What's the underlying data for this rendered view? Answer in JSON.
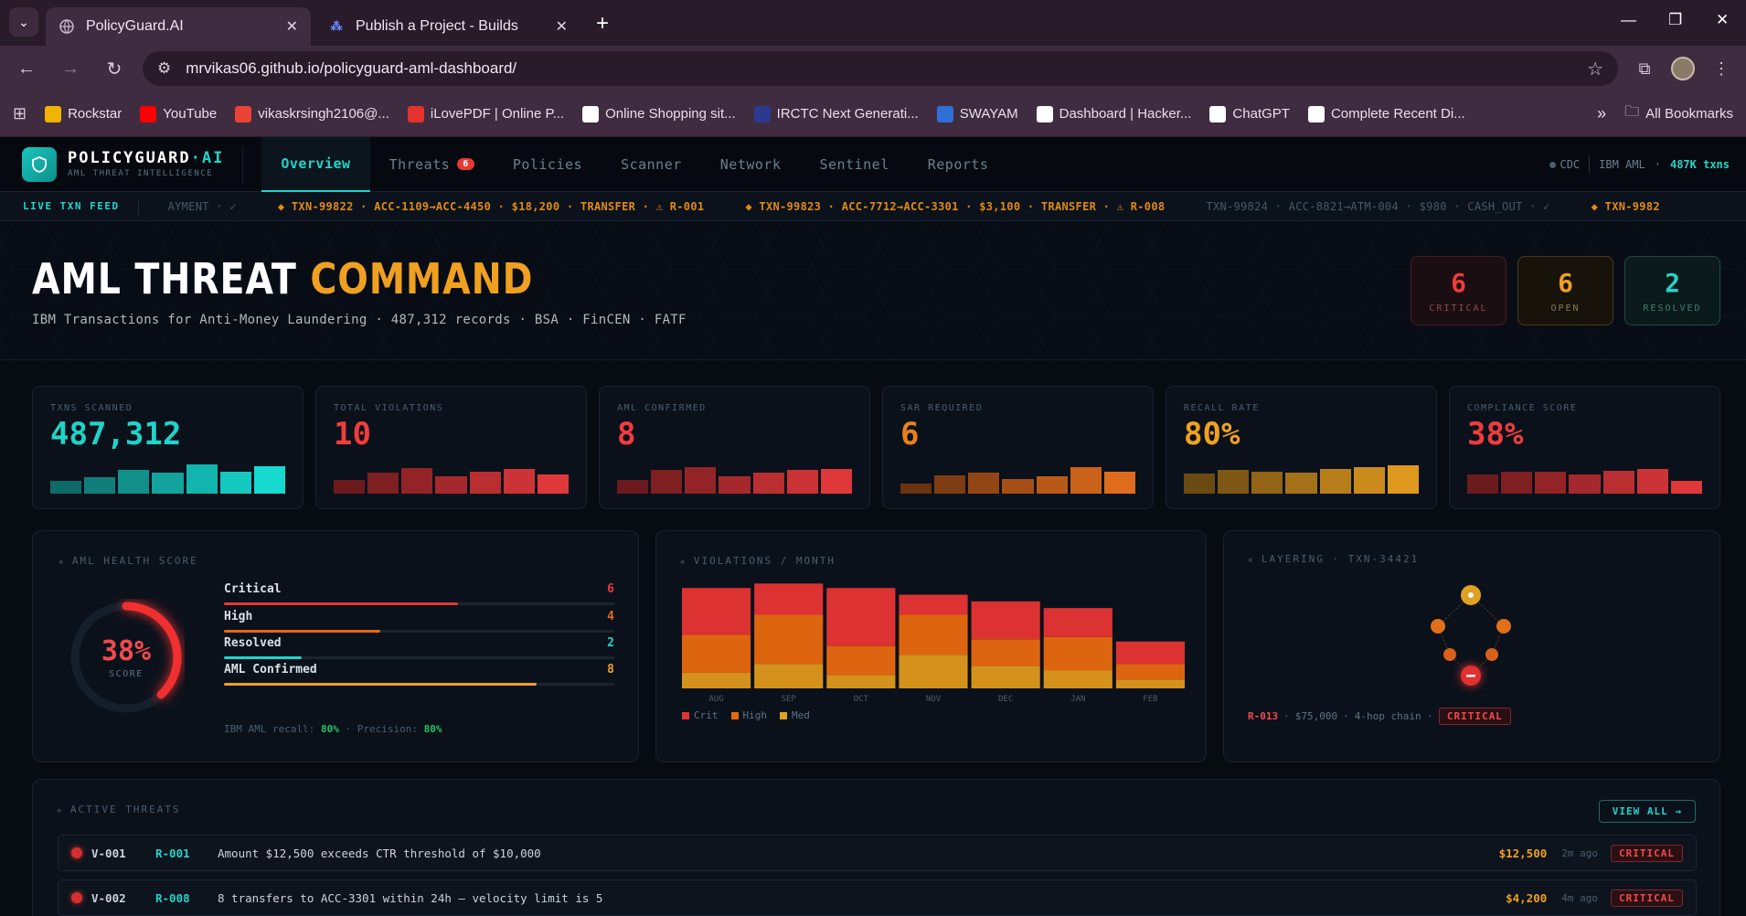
{
  "browser": {
    "tabs": [
      {
        "title": "PolicyGuard.AI",
        "favicon": "globe-icon"
      },
      {
        "title": "Publish a Project - Builds",
        "favicon": "builds-icon"
      }
    ],
    "url": "mrvikas06.github.io/policyguard-aml-dashboard/",
    "bookmarks": [
      {
        "label": "Rockstar",
        "color": "#f0b400"
      },
      {
        "label": "YouTube",
        "color": "#ff0000"
      },
      {
        "label": "vikaskrsingh2106@...",
        "color": "#ea4335"
      },
      {
        "label": "iLovePDF | Online P...",
        "color": "#e5322d"
      },
      {
        "label": "Online Shopping sit...",
        "color": "#ffffff"
      },
      {
        "label": "IRCTC Next Generati...",
        "color": "#2b3a8f"
      },
      {
        "label": "SWAYAM",
        "color": "#2f6fd6"
      },
      {
        "label": "Dashboard | Hacker...",
        "color": "#ffffff"
      },
      {
        "label": "ChatGPT",
        "color": "#ffffff"
      },
      {
        "label": "Complete Recent Di...",
        "color": "#ffffff"
      }
    ],
    "all_bookmarks": "All Bookmarks"
  },
  "app": {
    "brand_a": "POLICYGUARD",
    "brand_b": "·AI",
    "brand_sub": "AML THREAT INTELLIGENCE",
    "nav": [
      {
        "label": "Overview",
        "active": true
      },
      {
        "label": "Threats",
        "badge": "6"
      },
      {
        "label": "Policies"
      },
      {
        "label": "Scanner"
      },
      {
        "label": "Network"
      },
      {
        "label": "Sentinel"
      },
      {
        "label": "Reports"
      }
    ],
    "status": {
      "cdc": "CDC",
      "source": "IBM AML",
      "count": "487K txns"
    },
    "ticker": {
      "label": "LIVE TXN FEED",
      "items": [
        {
          "text": "AYMENT · ✓",
          "kind": "ok"
        },
        {
          "text": "◆ TXN-99822 · ACC-1109→ACC-4450 · $18,200 · TRANSFER · ⚠ R-001",
          "kind": "warn"
        },
        {
          "text": "◆ TXN-99823 · ACC-7712→ACC-3301 · $3,100 · TRANSFER · ⚠ R-008",
          "kind": "warn"
        },
        {
          "text": "TXN-99824 · ACC-8821→ATM-004 · $980 · CASH_OUT · ✓",
          "kind": "ok"
        },
        {
          "text": "◆ TXN-9982",
          "kind": "warn"
        }
      ]
    },
    "hero": {
      "title_a": "AML THREAT",
      "title_b": "COMMAND",
      "subtitle": "IBM Transactions for Anti-Money Laundering · 487,312 records · BSA · FinCEN · FATF",
      "stats": [
        {
          "value": "6",
          "label": "CRITICAL",
          "kind": "crit"
        },
        {
          "value": "6",
          "label": "OPEN",
          "kind": "open"
        },
        {
          "value": "2",
          "label": "RESOLVED",
          "kind": "res"
        }
      ]
    },
    "kpis": [
      {
        "label": "TXNS SCANNED",
        "value": "487,312",
        "color": "#1fd4c8",
        "bars": [
          0.4,
          0.5,
          0.72,
          0.64,
          0.88,
          0.66,
          0.82
        ],
        "bar_colors": [
          "#0e6b68",
          "#0f7e7a",
          "#109089",
          "#11a39c",
          "#12b5ae",
          "#14c7bf",
          "#16d9d0"
        ]
      },
      {
        "label": "TOTAL VIOLATIONS",
        "value": "10",
        "color": "#f03c3c",
        "bars": [
          0.42,
          0.64,
          0.78,
          0.52,
          0.66,
          0.76,
          0.58
        ],
        "bar_colors": [
          "#6b1a1d",
          "#7e1f22",
          "#922427",
          "#a5292c",
          "#b82e31",
          "#cb3336",
          "#de383b"
        ]
      },
      {
        "label": "AML CONFIRMED",
        "value": "8",
        "color": "#f03c3c",
        "bars": [
          0.42,
          0.72,
          0.8,
          0.54,
          0.64,
          0.72,
          0.76
        ],
        "bar_colors": [
          "#6b1a1d",
          "#7e1f22",
          "#922427",
          "#a5292c",
          "#b82e31",
          "#cb3336",
          "#de383b"
        ]
      },
      {
        "label": "SAR REQUIRED",
        "value": "6",
        "color": "#e8801a",
        "bars": [
          0.3,
          0.56,
          0.64,
          0.44,
          0.54,
          0.8,
          0.66
        ],
        "bar_colors": [
          "#6b3310",
          "#7e3c12",
          "#924614",
          "#a54f16",
          "#b85918",
          "#cb621a",
          "#de6c1c"
        ]
      },
      {
        "label": "RECALL RATE",
        "value": "80%",
        "color": "#f0a020",
        "bars": [
          0.6,
          0.72,
          0.68,
          0.64,
          0.76,
          0.8,
          0.86
        ],
        "bar_colors": [
          "#6b4a12",
          "#7e5714",
          "#926416",
          "#a57118",
          "#b87e1a",
          "#cb8b1c",
          "#de981e"
        ]
      },
      {
        "label": "COMPLIANCE SCORE",
        "value": "38%",
        "color": "#f03c3c",
        "bars": [
          0.58,
          0.66,
          0.66,
          0.58,
          0.7,
          0.74,
          0.38
        ],
        "bar_colors": [
          "#6b1a1d",
          "#7e1f22",
          "#922427",
          "#a5292c",
          "#b82e31",
          "#cb3336",
          "#de383b"
        ]
      }
    ],
    "health": {
      "title": "AML HEALTH SCORE",
      "score": "38%",
      "score_fraction": 0.38,
      "score_label": "SCORE",
      "rows": [
        {
          "name": "Critical",
          "value": "6",
          "fraction": 0.6,
          "color": "#e53935"
        },
        {
          "name": "High",
          "value": "4",
          "fraction": 0.4,
          "color": "#e26a10"
        },
        {
          "name": "Resolved",
          "value": "2",
          "fraction": 0.2,
          "color": "#22d4c8"
        },
        {
          "name": "AML Confirmed",
          "value": "8",
          "fraction": 0.8,
          "color": "#f0a020"
        }
      ],
      "foot_a": "IBM AML recall:",
      "foot_recall": "80%",
      "foot_b": "· Precision:",
      "foot_precision": "80%"
    },
    "violations": {
      "title": "VIOLATIONS / MONTH",
      "legend": [
        "Crit",
        "High",
        "Med"
      ]
    },
    "layering": {
      "title": "LAYERING · TXN-34421",
      "rule": "R-013",
      "amount": "$75,000",
      "chain": "4-hop chain ·",
      "severity": "CRITICAL"
    },
    "threats": {
      "title": "ACTIVE THREATS",
      "view_all": "VIEW ALL →",
      "rows": [
        {
          "id": "V-001",
          "rule": "R-001",
          "desc": "Amount $12,500 exceeds CTR threshold of $10,000",
          "amount": "$12,500",
          "ago": "2m ago",
          "severity": "CRITICAL"
        },
        {
          "id": "V-002",
          "rule": "R-008",
          "desc": "8 transfers to ACC-3301 within 24h — velocity limit is 5",
          "amount": "$4,200",
          "ago": "4m ago",
          "severity": "CRITICAL"
        }
      ]
    }
  },
  "chart_data": {
    "type": "bar",
    "title": "VIOLATIONS / MONTH",
    "categories": [
      "AUG",
      "SEP",
      "OCT",
      "NOV",
      "DEC",
      "JAN",
      "FEB"
    ],
    "series": [
      {
        "name": "Med",
        "values": [
          14,
          22,
          12,
          30,
          20,
          16,
          8
        ],
        "color": "#d4921c"
      },
      {
        "name": "High",
        "values": [
          34,
          44,
          26,
          36,
          24,
          30,
          14
        ],
        "color": "#de6510"
      },
      {
        "name": "Crit",
        "values": [
          42,
          28,
          52,
          18,
          34,
          26,
          20
        ],
        "color": "#dc3232"
      }
    ],
    "ylim": [
      0,
      100
    ],
    "grid": false,
    "legend": "bottom-left"
  }
}
